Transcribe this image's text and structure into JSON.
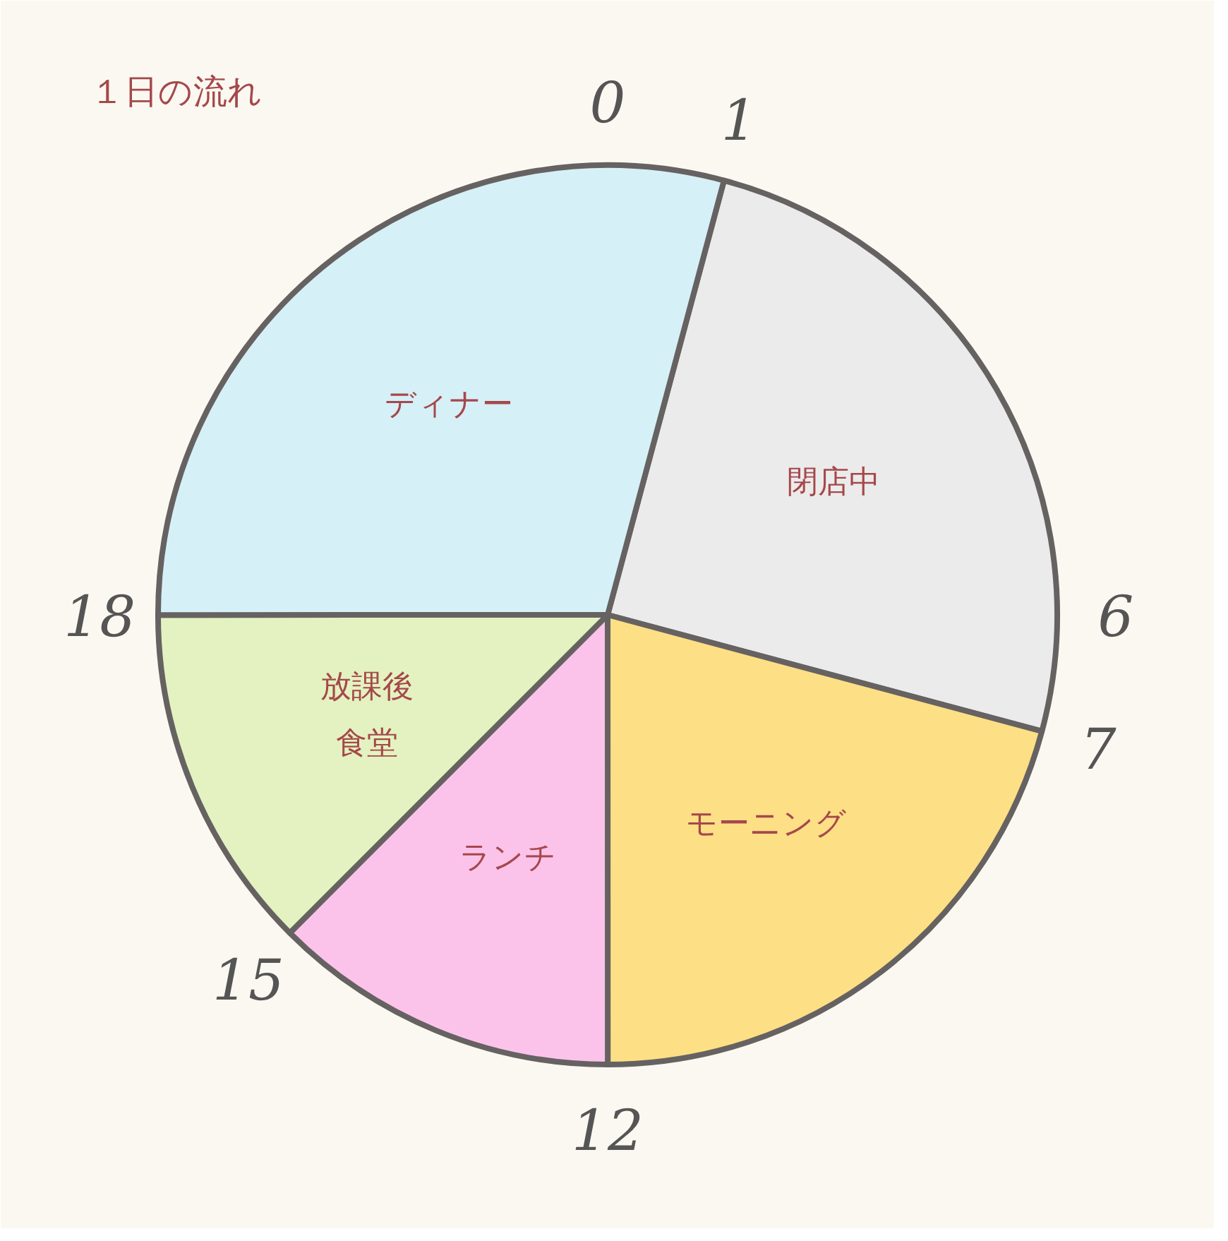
{
  "chart_data": {
    "type": "pie",
    "title": "１日の流れ",
    "categories": [
      "閉店中",
      "モーニング",
      "ランチ",
      "放課後食堂",
      "ディナー"
    ],
    "values": [
      25,
      20.83,
      12.5,
      12.5,
      29.17
    ],
    "colors": [
      "#ebebeb",
      "#fddf85",
      "#fcc3ea",
      "#e3f2c0",
      "#d6f0f7"
    ],
    "annotations": [
      "0",
      "1",
      "6",
      "7",
      "12",
      "15",
      "18"
    ]
  }
}
